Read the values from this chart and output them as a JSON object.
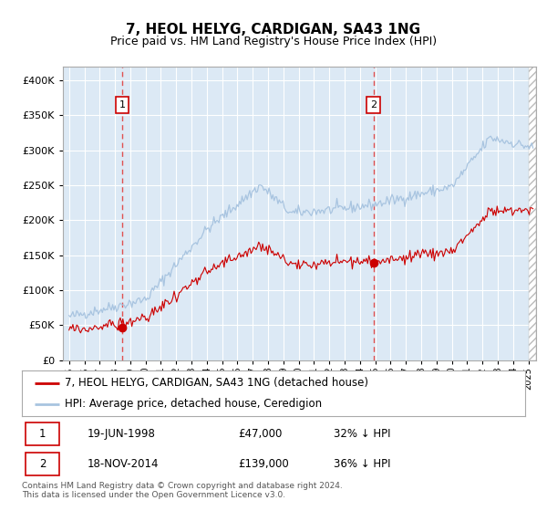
{
  "title": "7, HEOL HELYG, CARDIGAN, SA43 1NG",
  "subtitle": "Price paid vs. HM Land Registry's House Price Index (HPI)",
  "legend_line1": "7, HEOL HELYG, CARDIGAN, SA43 1NG (detached house)",
  "legend_line2": "HPI: Average price, detached house, Ceredigion",
  "annotation1_date": "19-JUN-1998",
  "annotation1_price": "£47,000",
  "annotation1_hpi": "32% ↓ HPI",
  "annotation2_date": "18-NOV-2014",
  "annotation2_price": "£139,000",
  "annotation2_hpi": "36% ↓ HPI",
  "footnote": "Contains HM Land Registry data © Crown copyright and database right 2024.\nThis data is licensed under the Open Government Licence v3.0.",
  "sale1_year": 1998.47,
  "sale1_price": 47000,
  "sale2_year": 2014.88,
  "sale2_price": 139000,
  "hpi_color": "#a8c4e0",
  "price_color": "#cc0000",
  "dashed_line_color": "#e05050",
  "background_color": "#dce9f5",
  "plot_bg_color": "#ffffff",
  "grid_color": "#c8d8e8",
  "ylim": [
    0,
    420000
  ],
  "xmin": 1994.6,
  "xmax": 2025.5
}
